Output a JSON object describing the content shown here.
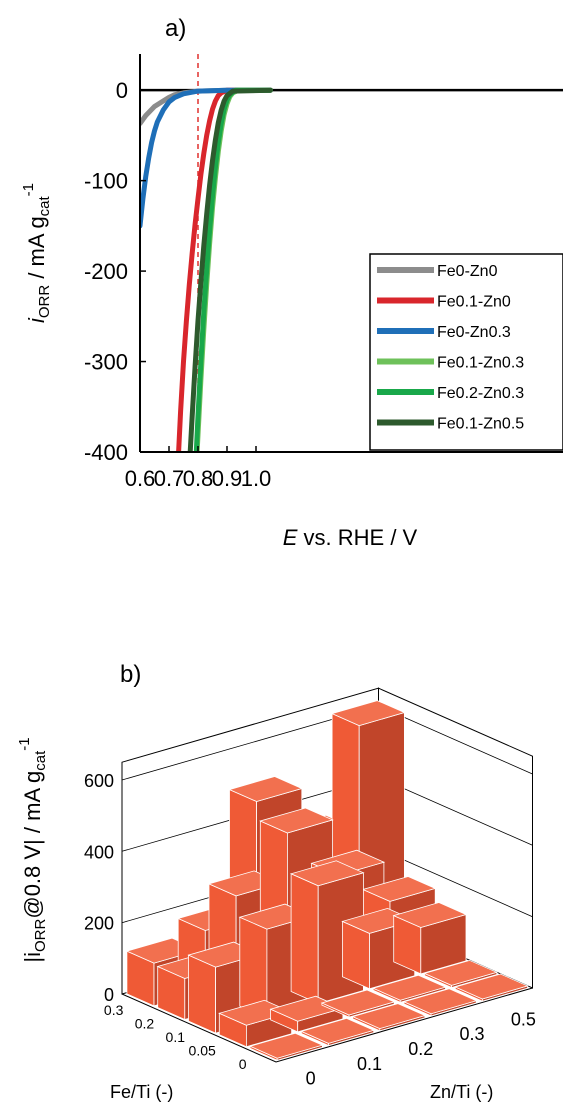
{
  "chart_data": [
    {
      "type": "line",
      "panel_label": "a)",
      "xlabel_italic": "E",
      "xlabel_rest": " vs. RHE / V",
      "ylabel_i": "i",
      "ylabel_sub": "ORR",
      "ylabel_mid": " / mA g",
      "ylabel_sub2": "cat",
      "ylabel_sup": "-1",
      "xlim": [
        0.6,
        1.05
      ],
      "ylim": [
        -400,
        40
      ],
      "x_ticks": [
        "0.6",
        "0.7",
        "0.8",
        "0.9",
        "1.0"
      ],
      "y_ticks": [
        "0",
        "-100",
        "-200",
        "-300",
        "-400"
      ],
      "reference_line_x": 0.8,
      "legend_position": "bottom-right",
      "series": [
        {
          "name": "Fe0-Zn0",
          "color": "#8c8c8c",
          "x": [
            0.6,
            0.62,
            0.65,
            0.68,
            0.7,
            0.72,
            0.75,
            0.8,
            0.9,
            1.05
          ],
          "y": [
            -37,
            -28,
            -18,
            -12,
            -8,
            -5,
            -3,
            -1,
            0,
            0
          ]
        },
        {
          "name": "Fe0.1-Zn0",
          "color": "#d9262c",
          "x": [
            0.733,
            0.74,
            0.75,
            0.76,
            0.77,
            0.78,
            0.79,
            0.8,
            0.81,
            0.82,
            0.83,
            0.84,
            0.85,
            0.86,
            0.87,
            0.88,
            0.9,
            1.05
          ],
          "y": [
            -400,
            -355,
            -300,
            -255,
            -215,
            -180,
            -148,
            -120,
            -93,
            -70,
            -50,
            -34,
            -21,
            -12,
            -6,
            -3,
            0,
            0
          ]
        },
        {
          "name": "Fe0-Zn0.3",
          "color": "#1f6fb8",
          "x": [
            0.6,
            0.61,
            0.62,
            0.63,
            0.64,
            0.65,
            0.66,
            0.68,
            0.7,
            0.72,
            0.75,
            0.8,
            0.9,
            1.05
          ],
          "y": [
            -150,
            -120,
            -95,
            -75,
            -58,
            -45,
            -35,
            -22,
            -13,
            -8,
            -4,
            -1,
            0,
            0
          ]
        },
        {
          "name": "Fe0.1-Zn0.3",
          "color": "#6ec15a",
          "x": [
            0.797,
            0.81,
            0.82,
            0.83,
            0.84,
            0.85,
            0.86,
            0.87,
            0.88,
            0.89,
            0.9,
            0.91,
            0.92,
            0.94,
            1.05
          ],
          "y": [
            -400,
            -320,
            -265,
            -215,
            -170,
            -130,
            -97,
            -68,
            -45,
            -27,
            -15,
            -7,
            -3,
            0,
            0
          ]
        },
        {
          "name": "Fe0.2-Zn0.3",
          "color": "#19a84a",
          "x": [
            0.794,
            0.8,
            0.81,
            0.82,
            0.83,
            0.84,
            0.85,
            0.86,
            0.87,
            0.88,
            0.89,
            0.9,
            0.91,
            0.93,
            1.05
          ],
          "y": [
            -400,
            -360,
            -300,
            -245,
            -198,
            -155,
            -117,
            -85,
            -58,
            -37,
            -21,
            -11,
            -5,
            0,
            0
          ]
        },
        {
          "name": "Fe0.1-Zn0.5",
          "color": "#2d5a2d",
          "x": [
            0.773,
            0.78,
            0.79,
            0.8,
            0.81,
            0.82,
            0.83,
            0.84,
            0.85,
            0.86,
            0.87,
            0.88,
            0.89,
            0.9,
            0.92,
            1.05
          ],
          "y": [
            -400,
            -360,
            -305,
            -255,
            -212,
            -172,
            -137,
            -105,
            -78,
            -55,
            -36,
            -22,
            -12,
            -6,
            -1,
            0
          ]
        }
      ]
    },
    {
      "type": "bar3d",
      "panel_label": "b)",
      "ylabel_pre": "|i",
      "ylabel_sub": "ORR",
      "ylabel_mid": "@0.8 V| / mA g",
      "ylabel_sub2": "cat",
      "ylabel_sup": "-1",
      "xlabel": "Zn/Ti (-)",
      "depth_label": "Fe/Ti (-)",
      "zlim": [
        0,
        650
      ],
      "z_ticks": [
        "0",
        "200",
        "400",
        "600"
      ],
      "zn_ti": [
        "0",
        "0.1",
        "0.2",
        "0.3",
        "0.5"
      ],
      "fe_ti": [
        "0",
        "0.05",
        "0.1",
        "0.2",
        "0.3"
      ],
      "bar_color": "#ef5a36",
      "values": [
        [
          0,
          0,
          0,
          0,
          0
        ],
        [
          60,
          30,
          0,
          0,
          0
        ],
        [
          185,
          250,
          330,
          155,
          130
        ],
        [
          115,
          305,
          440,
          280,
          165
        ],
        [
          120,
          170,
          490,
          340,
          620
        ]
      ]
    }
  ]
}
